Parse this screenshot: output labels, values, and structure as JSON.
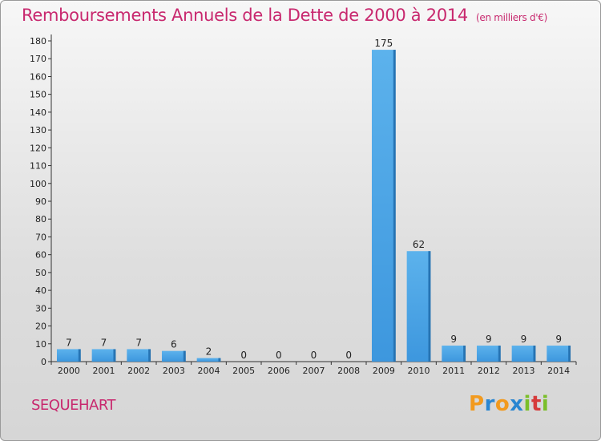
{
  "chart_data": {
    "type": "bar",
    "title": "Remboursements Annuels de la Dette de 2000 à 2014",
    "unit_note": "(en milliers d'€)",
    "categories": [
      "2000",
      "2001",
      "2002",
      "2003",
      "2004",
      "2005",
      "2006",
      "2007",
      "2008",
      "2009",
      "2010",
      "2011",
      "2012",
      "2013",
      "2014"
    ],
    "values": [
      7,
      7,
      7,
      6,
      2,
      0,
      0,
      0,
      0,
      175,
      62,
      9,
      9,
      9,
      9
    ],
    "ylim": [
      0,
      180
    ],
    "yticks": [
      0,
      10,
      20,
      30,
      40,
      50,
      60,
      70,
      80,
      90,
      100,
      110,
      120,
      130,
      140,
      150,
      160,
      170,
      180
    ],
    "grid": false,
    "colors": {
      "bar": "#3d97de",
      "title": "#c8286e"
    }
  },
  "commune": "SEQUEHART",
  "brand": {
    "letters": [
      "P",
      "r",
      "o",
      "x",
      "i",
      "t",
      "i"
    ],
    "colors": [
      "#f29a1e",
      "#2a86d1",
      "#f29a1e",
      "#2a86d1",
      "#7bbf2a",
      "#d63b3b",
      "#7bbf2a"
    ]
  }
}
